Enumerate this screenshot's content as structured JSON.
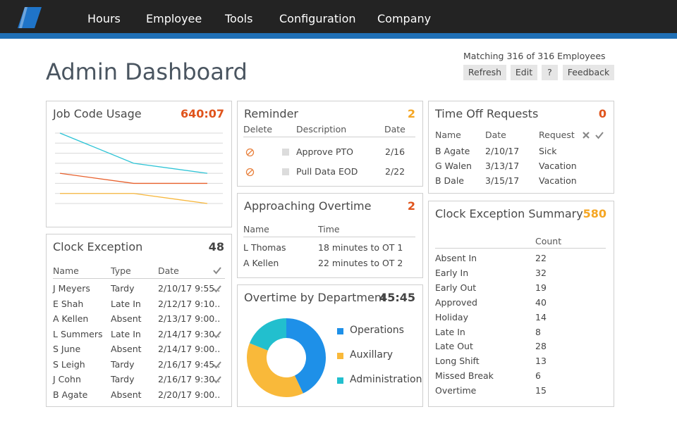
{
  "nav": {
    "items": [
      "Hours",
      "Employee",
      "Tools",
      "Configuration",
      "Company"
    ]
  },
  "header": {
    "title": "Admin Dashboard",
    "matching": "Matching 316 of 316 Employees",
    "buttons": [
      "Refresh",
      "Edit",
      "?",
      "Feedback"
    ]
  },
  "job_code_usage": {
    "title": "Job Code Usage",
    "total": "640:07",
    "chart_data": {
      "type": "line",
      "ylim": [
        0,
        7
      ],
      "series": [
        {
          "color": "#2ec4d6",
          "values": [
            7,
            4,
            3
          ]
        },
        {
          "color": "#e8602c",
          "values": [
            3,
            2,
            2
          ]
        },
        {
          "color": "#f7b73c",
          "values": [
            1,
            1,
            0
          ]
        }
      ]
    }
  },
  "clock_exception": {
    "title": "Clock Exception",
    "count": 48,
    "columns": [
      "Name",
      "Type",
      "Date"
    ],
    "rows": [
      {
        "cells": [
          "J Meyers",
          "Tardy",
          "2/10/17 9:55.."
        ],
        "checked": true
      },
      {
        "cells": [
          "E Shah",
          "Late In",
          "2/12/17 9:10.."
        ],
        "checked": false
      },
      {
        "cells": [
          "A Kellen",
          "Absent",
          "2/13/17 9:00.."
        ],
        "checked": false
      },
      {
        "cells": [
          "L Summers",
          "Late In",
          "2/14/17 9:30.."
        ],
        "checked": true
      },
      {
        "cells": [
          "S June",
          "Absent",
          "2/14/17 9:00.."
        ],
        "checked": false
      },
      {
        "cells": [
          "S Leigh",
          "Tardy",
          "2/16/17 9:45.."
        ],
        "checked": true
      },
      {
        "cells": [
          "J Cohn",
          "Tardy",
          "2/16/17 9:30.."
        ],
        "checked": true
      },
      {
        "cells": [
          "B Agate",
          "Absent",
          "2/20/17 9:00.."
        ],
        "checked": false
      }
    ]
  },
  "reminder": {
    "title": "Reminder",
    "count": 2,
    "columns": [
      "Delete",
      "Description",
      "Date"
    ],
    "rows": [
      [
        "Approve PTO",
        "2/16"
      ],
      [
        "Pull Data EOD",
        "2/22"
      ]
    ]
  },
  "approaching_overtime": {
    "title": "Approaching Overtime",
    "count": 2,
    "columns": [
      "Name",
      "Time"
    ],
    "rows": [
      [
        "L Thomas",
        "18 minutes to OT 1"
      ],
      [
        "A Kellen",
        "22 minutes to OT 2"
      ]
    ]
  },
  "overtime_by_department": {
    "title": "Overtime by Department",
    "total": "45:45",
    "chart_data": {
      "type": "pie",
      "categories": [
        "Operations",
        "Auxillary",
        "Administration"
      ],
      "values": [
        43,
        38,
        19
      ],
      "colors": [
        "#1e90e8",
        "#f9b93a",
        "#22bfce"
      ]
    }
  },
  "time_off_requests": {
    "title": "Time Off Requests",
    "count": 0,
    "columns": [
      "Name",
      "Date",
      "Request"
    ],
    "rows": [
      [
        "B Agate",
        "2/10/17",
        "Sick"
      ],
      [
        "G Walen",
        "3/13/17",
        "Vacation"
      ],
      [
        "B Dale",
        "3/15/17",
        "Vacation"
      ]
    ]
  },
  "clock_exception_summary": {
    "title": "Clock Exception Summary",
    "count": 580,
    "column": "Count",
    "rows": [
      [
        "Absent In",
        22
      ],
      [
        "Early In",
        32
      ],
      [
        "Early Out",
        19
      ],
      [
        "Approved",
        40
      ],
      [
        "Holiday",
        14
      ],
      [
        "Late In",
        8
      ],
      [
        "Late Out",
        28
      ],
      [
        "Long Shift",
        13
      ],
      [
        "Missed Break",
        6
      ],
      [
        "Overtime",
        15
      ]
    ]
  }
}
